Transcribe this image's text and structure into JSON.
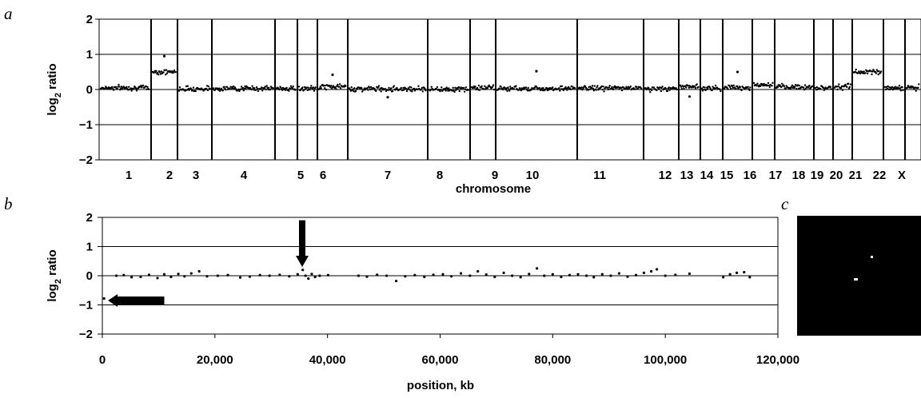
{
  "panels": {
    "a": "a",
    "b": "b",
    "c": "c"
  },
  "chart_data": [
    {
      "type": "scatter",
      "panel": "a",
      "title": "",
      "xlabel": "chromosome",
      "ylabel": "log2 ratio",
      "ylim": [
        -2,
        2
      ],
      "yticks": [
        "2",
        "1",
        "0",
        "−1",
        "−2"
      ],
      "grid": true,
      "categories": [
        "1",
        "2",
        "3",
        "4",
        "5",
        "6",
        "7",
        "8",
        "9",
        "10",
        "11",
        "12",
        "13",
        "14",
        "15",
        "16",
        "17",
        "18",
        "19",
        "20",
        "21",
        "22",
        "X"
      ],
      "series": [
        {
          "values_by_chromosome": [
            0.05,
            0.5,
            0.02,
            0.03,
            0.03,
            0.02,
            0.08,
            0.02,
            0.01,
            0.05,
            0.03,
            0.04,
            0.02,
            0.08,
            0.04,
            0.06,
            0.12,
            0.07,
            0.05,
            0.08,
            0.5,
            0.05,
            0.05
          ]
        }
      ],
      "outliers": [
        {
          "chromosome": "2",
          "y": 0.95
        },
        {
          "chromosome": "7",
          "y": 0.42
        },
        {
          "chromosome": "8",
          "y": -0.22
        },
        {
          "chromosome": "11",
          "y": 0.52
        },
        {
          "chromosome": "14",
          "y": -0.2
        },
        {
          "chromosome": "16",
          "y": 0.5
        }
      ]
    },
    {
      "type": "scatter",
      "panel": "b",
      "title": "",
      "xlabel": "position, kb",
      "ylabel": "log2 ratio",
      "xlim": [
        0,
        120000
      ],
      "ylim": [
        -2,
        2
      ],
      "xticks": [
        "0",
        "20,000",
        "40,000",
        "60,000",
        "80,000",
        "100,000",
        "120,000"
      ],
      "yticks": [
        "2",
        "1",
        "0",
        "−1",
        "−2"
      ],
      "grid": true,
      "series": [
        {
          "x": [
            300,
            1500,
            2500,
            3800,
            5200,
            6800,
            8300,
            9800,
            11000,
            12200,
            13500,
            14600,
            15800,
            17200,
            18600,
            20500,
            22300,
            24500,
            26200,
            28000,
            29700,
            31500,
            33200,
            34700,
            35600,
            36100,
            36600,
            37200,
            37800,
            38600,
            40100,
            45500,
            47000,
            48800,
            50500,
            52200,
            53800,
            55500,
            57200,
            58800,
            60500,
            62000,
            63700,
            65300,
            66700,
            68200,
            69700,
            71300,
            72800,
            74300,
            75800,
            77200,
            78500,
            80000,
            81500,
            83000,
            84500,
            86000,
            87300,
            88800,
            90300,
            91800,
            93300,
            94800,
            96200,
            97500,
            98500,
            100000,
            101800,
            104300,
            110300,
            111500,
            112700,
            114000,
            115000
          ],
          "y": [
            -0.78,
            -0.85,
            0.0,
            0.02,
            -0.05,
            -0.04,
            0.03,
            -0.08,
            0.05,
            -0.04,
            0.06,
            -0.02,
            0.08,
            0.15,
            -0.02,
            0.0,
            0.02,
            -0.06,
            -0.03,
            0.02,
            0.0,
            0.03,
            -0.02,
            0.05,
            0.2,
            0.0,
            -0.1,
            0.06,
            -0.04,
            0.0,
            0.02,
            0.0,
            -0.03,
            0.03,
            0.0,
            -0.18,
            -0.02,
            0.02,
            -0.04,
            0.03,
            0.05,
            -0.02,
            0.08,
            0.0,
            0.15,
            0.04,
            -0.04,
            0.1,
            0.0,
            -0.05,
            0.06,
            0.25,
            0.0,
            0.05,
            -0.04,
            0.02,
            0.05,
            0.0,
            -0.05,
            0.05,
            0.0,
            0.08,
            -0.03,
            0.02,
            0.1,
            0.15,
            0.22,
            0.0,
            0.03,
            0.07,
            -0.05,
            0.05,
            0.1,
            0.12,
            -0.05
          ]
        }
      ],
      "annotations": [
        {
          "type": "arrow-down",
          "x": 35500,
          "y_from": 1.9,
          "y_to": 0.3
        },
        {
          "type": "arrow-left",
          "x_from": 11000,
          "x_to": 1000,
          "y": -0.85
        }
      ]
    }
  ],
  "panel_c": {
    "description_free": true,
    "background": "#000000",
    "dot_color": "#ffffff"
  }
}
